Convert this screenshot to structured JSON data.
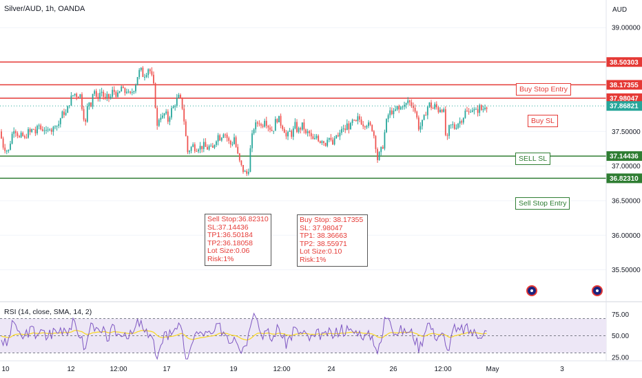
{
  "chart_title": "Silver/AUD, 1h, OANDA",
  "currency": "AUD",
  "chart_data": [
    {
      "type": "candlestick",
      "title": "Silver/AUD, 1h, OANDA",
      "ylim": [
        35.3,
        39.1
      ],
      "y_ticks": [
        "39.00000",
        "38.50000",
        "38.00000",
        "37.50000",
        "37.00000",
        "36.50000",
        "36.00000",
        "35.50000"
      ],
      "x_ticks": [
        "10",
        "12",
        "12:00",
        "17",
        "19",
        "12:00",
        "24",
        "26",
        "12:00",
        "May",
        "3"
      ],
      "last_price": "37.86821",
      "close_path": [
        [
          0,
          37.5
        ],
        [
          4,
          37.3
        ],
        [
          8,
          37.25
        ],
        [
          12,
          37.2
        ],
        [
          16,
          37.4
        ],
        [
          20,
          37.55
        ],
        [
          24,
          37.5
        ],
        [
          28,
          37.4
        ],
        [
          32,
          37.45
        ],
        [
          36,
          37.38
        ],
        [
          40,
          37.5
        ],
        [
          44,
          37.48
        ],
        [
          48,
          37.55
        ],
        [
          52,
          37.47
        ],
        [
          56,
          37.6
        ],
        [
          60,
          37.52
        ],
        [
          64,
          37.55
        ],
        [
          68,
          37.45
        ],
        [
          72,
          37.58
        ],
        [
          76,
          37.5
        ],
        [
          80,
          37.62
        ],
        [
          84,
          37.57
        ],
        [
          88,
          37.7
        ],
        [
          92,
          37.78
        ],
        [
          96,
          37.75
        ],
        [
          100,
          37.9
        ],
        [
          104,
          38.0
        ],
        [
          108,
          38.05
        ],
        [
          112,
          38.02
        ],
        [
          116,
          38.05
        ],
        [
          120,
          37.8
        ],
        [
          124,
          37.6
        ],
        [
          128,
          37.95
        ],
        [
          132,
          37.9
        ],
        [
          136,
          38.15
        ],
        [
          140,
          37.95
        ],
        [
          144,
          38.05
        ],
        [
          148,
          38.08
        ],
        [
          152,
          37.95
        ],
        [
          156,
          38.0
        ],
        [
          160,
          37.98
        ],
        [
          164,
          38.1
        ],
        [
          168,
          38.05
        ],
        [
          172,
          38.0
        ],
        [
          176,
          38.15
        ],
        [
          180,
          38.05
        ],
        [
          184,
          38.1
        ],
        [
          188,
          38.0
        ],
        [
          192,
          38.08
        ],
        [
          196,
          38.15
        ],
        [
          200,
          38.32
        ],
        [
          204,
          38.4
        ],
        [
          208,
          38.3
        ],
        [
          212,
          38.35
        ],
        [
          216,
          38.43
        ],
        [
          220,
          38.3
        ],
        [
          224,
          38.1
        ],
        [
          228,
          37.55
        ],
        [
          232,
          37.75
        ],
        [
          236,
          37.7
        ],
        [
          240,
          37.78
        ],
        [
          244,
          37.65
        ],
        [
          248,
          37.8
        ],
        [
          252,
          37.85
        ],
        [
          256,
          37.95
        ],
        [
          260,
          38.0
        ],
        [
          264,
          37.9
        ],
        [
          268,
          37.6
        ],
        [
          272,
          37.2
        ],
        [
          276,
          37.25
        ],
        [
          280,
          37.3
        ],
        [
          284,
          37.25
        ],
        [
          288,
          37.28
        ],
        [
          292,
          37.27
        ],
        [
          296,
          37.3
        ],
        [
          300,
          37.25
        ],
        [
          304,
          37.28
        ],
        [
          308,
          37.22
        ],
        [
          312,
          37.35
        ],
        [
          316,
          37.45
        ],
        [
          320,
          37.4
        ],
        [
          324,
          37.5
        ],
        [
          328,
          37.45
        ],
        [
          332,
          37.35
        ],
        [
          336,
          37.3
        ],
        [
          340,
          37.42
        ],
        [
          344,
          37.2
        ],
        [
          348,
          37.05
        ],
        [
          352,
          36.95
        ],
        [
          356,
          36.9
        ],
        [
          360,
          36.88
        ],
        [
          364,
          37.3
        ],
        [
          368,
          37.55
        ],
        [
          372,
          37.6
        ],
        [
          376,
          37.65
        ],
        [
          380,
          37.55
        ],
        [
          384,
          37.7
        ],
        [
          388,
          37.6
        ],
        [
          392,
          37.55
        ],
        [
          396,
          37.5
        ],
        [
          400,
          37.65
        ],
        [
          404,
          37.7
        ],
        [
          408,
          37.6
        ],
        [
          412,
          37.55
        ],
        [
          416,
          37.4
        ],
        [
          420,
          37.5
        ],
        [
          424,
          37.45
        ],
        [
          428,
          37.6
        ],
        [
          432,
          37.5
        ],
        [
          436,
          37.55
        ],
        [
          440,
          37.6
        ],
        [
          444,
          37.45
        ],
        [
          448,
          37.5
        ],
        [
          452,
          37.4
        ],
        [
          456,
          37.35
        ],
        [
          460,
          37.45
        ],
        [
          464,
          37.35
        ],
        [
          468,
          37.4
        ],
        [
          472,
          37.3
        ],
        [
          476,
          37.45
        ],
        [
          480,
          37.35
        ],
        [
          484,
          37.3
        ],
        [
          488,
          37.45
        ],
        [
          492,
          37.4
        ],
        [
          496,
          37.55
        ],
        [
          500,
          37.5
        ],
        [
          504,
          37.6
        ],
        [
          508,
          37.55
        ],
        [
          512,
          37.65
        ],
        [
          516,
          37.6
        ],
        [
          520,
          37.7
        ],
        [
          524,
          37.65
        ],
        [
          528,
          37.6
        ],
        [
          532,
          37.62
        ],
        [
          536,
          37.58
        ],
        [
          540,
          37.55
        ],
        [
          544,
          37.4
        ],
        [
          548,
          37.1
        ],
        [
          552,
          37.2
        ],
        [
          556,
          37.3
        ],
        [
          560,
          37.6
        ],
        [
          564,
          37.75
        ],
        [
          568,
          37.8
        ],
        [
          572,
          37.75
        ],
        [
          576,
          37.85
        ],
        [
          580,
          37.8
        ],
        [
          584,
          37.9
        ],
        [
          588,
          37.85
        ],
        [
          592,
          37.95
        ],
        [
          596,
          37.9
        ],
        [
          600,
          37.88
        ],
        [
          604,
          37.75
        ],
        [
          608,
          37.55
        ],
        [
          612,
          37.6
        ],
        [
          616,
          37.7
        ],
        [
          620,
          37.85
        ],
        [
          624,
          37.9
        ],
        [
          628,
          37.82
        ],
        [
          632,
          37.88
        ],
        [
          636,
          37.8
        ],
        [
          640,
          37.85
        ],
        [
          644,
          37.8
        ],
        [
          648,
          37.3
        ],
        [
          652,
          37.55
        ],
        [
          656,
          37.6
        ],
        [
          660,
          37.55
        ],
        [
          664,
          37.62
        ],
        [
          668,
          37.65
        ],
        [
          672,
          37.7
        ],
        [
          676,
          37.8
        ],
        [
          680,
          37.75
        ],
        [
          684,
          37.85
        ],
        [
          688,
          37.8
        ],
        [
          692,
          37.78
        ],
        [
          696,
          37.85
        ],
        [
          700,
          37.8
        ],
        [
          704,
          37.88
        ],
        [
          708,
          37.87
        ]
      ]
    },
    {
      "type": "line",
      "title": "RSI (14, close, SMA, 14, 2)",
      "ylim": [
        20,
        80
      ],
      "y_ticks": [
        "75.00",
        "50.00",
        "25.00"
      ],
      "bands": [
        70,
        50,
        30
      ]
    }
  ],
  "levels": [
    {
      "value": "38.50303",
      "color": "#e53935"
    },
    {
      "value": "38.17355",
      "color": "#e53935"
    },
    {
      "value": "37.98047",
      "color": "#e53935"
    },
    {
      "value": "37.14436",
      "color": "#2e7d32"
    },
    {
      "value": "36.82310",
      "color": "#2e7d32"
    }
  ],
  "labels": {
    "buy_stop_entry": "Buy Stop Entry",
    "buy_sl": "Buy SL",
    "sell_sl": "SELL SL",
    "sell_stop_entry": "Sell Stop Entry"
  },
  "sell_note": "Sell Stop:36.82310\nSL:37.14436\nTP1:36.50184\nTP2:36.18058\nLot Size:0.06\nRisk:1%",
  "buy_note": "Buy Stop: 38.17355\nSL: 37.98047\nTP1: 38.36663\nTP2: 38.55971\nLot Size:0.10\nRisk:1%",
  "rsi_title": "RSI (14, close, SMA, 14, 2)",
  "colors": {
    "up": "#26a69a",
    "down": "#ef5350",
    "rsi_line": "#7e57c2",
    "rsi_ma": "#f9d71c",
    "rsi_band": "#ede7f6",
    "grid": "#f0f3fa"
  }
}
